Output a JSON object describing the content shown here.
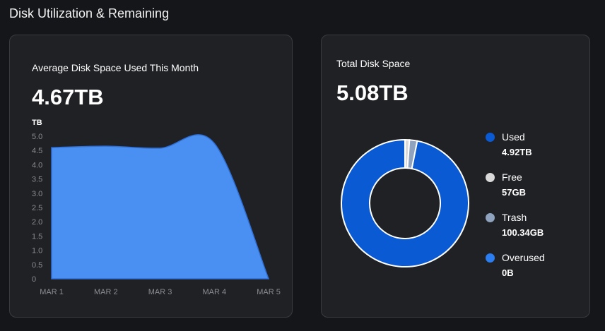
{
  "section_title": "Disk Utilization & Remaining",
  "left_card": {
    "label": "Average Disk Space Used This Month",
    "value": "4.67TB"
  },
  "right_card": {
    "label": "Total Disk Space",
    "value": "5.08TB",
    "legend": [
      {
        "name": "Used",
        "value": "4.92TB",
        "color": "#0a5ad4"
      },
      {
        "name": "Free",
        "value": "57GB",
        "color": "#d9d9d9"
      },
      {
        "name": "Trash",
        "value": "100.34GB",
        "color": "#8fa3bf"
      },
      {
        "name": "Overused",
        "value": "0B",
        "color": "#2b7df0"
      }
    ]
  },
  "chart_data": [
    {
      "type": "area",
      "ylabel": "TB",
      "x": [
        "MAR 1",
        "MAR 2",
        "MAR 3",
        "MAR 4",
        "MAR 5"
      ],
      "y": [
        4.6,
        4.65,
        4.58,
        4.75,
        0
      ],
      "yticks": [
        "5.0",
        "4.5",
        "4.0",
        "3.5",
        "3.0",
        "2.5",
        "2.0",
        "1.5",
        "1.0",
        "0.5",
        "0"
      ],
      "ylim": [
        0,
        5.0
      ],
      "color": "#4a8ff2"
    },
    {
      "type": "pie",
      "donut": true,
      "labels": [
        "Used",
        "Free",
        "Trash",
        "Overused"
      ],
      "values": [
        4920,
        57,
        100.34,
        0
      ],
      "colors": [
        "#0a5ad4",
        "#d9d9d9",
        "#8fa3bf",
        "#2b7df0"
      ]
    }
  ]
}
